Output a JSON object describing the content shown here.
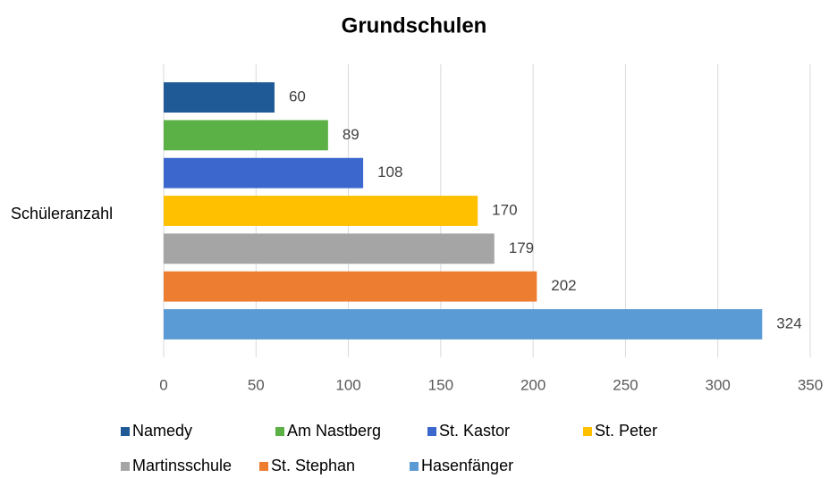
{
  "chart_data": {
    "type": "bar",
    "title": "Grundschulen",
    "categories": [
      "Schüleranzahl"
    ],
    "series": [
      {
        "name": "Namedy",
        "color": "#1f5a96",
        "values": [
          60
        ]
      },
      {
        "name": "Am Nastberg",
        "color": "#5bb146",
        "values": [
          89
        ]
      },
      {
        "name": "St. Kastor",
        "color": "#3c67cc",
        "values": [
          108
        ]
      },
      {
        "name": "St. Peter",
        "color": "#ffc000",
        "values": [
          170
        ]
      },
      {
        "name": "Martinsschule",
        "color": "#a5a5a5",
        "values": [
          179
        ]
      },
      {
        "name": "St. Stephan",
        "color": "#ed7d31",
        "values": [
          202
        ]
      },
      {
        "name": "Hasenfänger",
        "color": "#5b9bd5",
        "values": [
          324
        ]
      }
    ],
    "xlim": [
      0,
      350
    ],
    "xticks": [
      0,
      50,
      100,
      150,
      200,
      250,
      300,
      350
    ],
    "grid": true,
    "legend": "bottom"
  }
}
